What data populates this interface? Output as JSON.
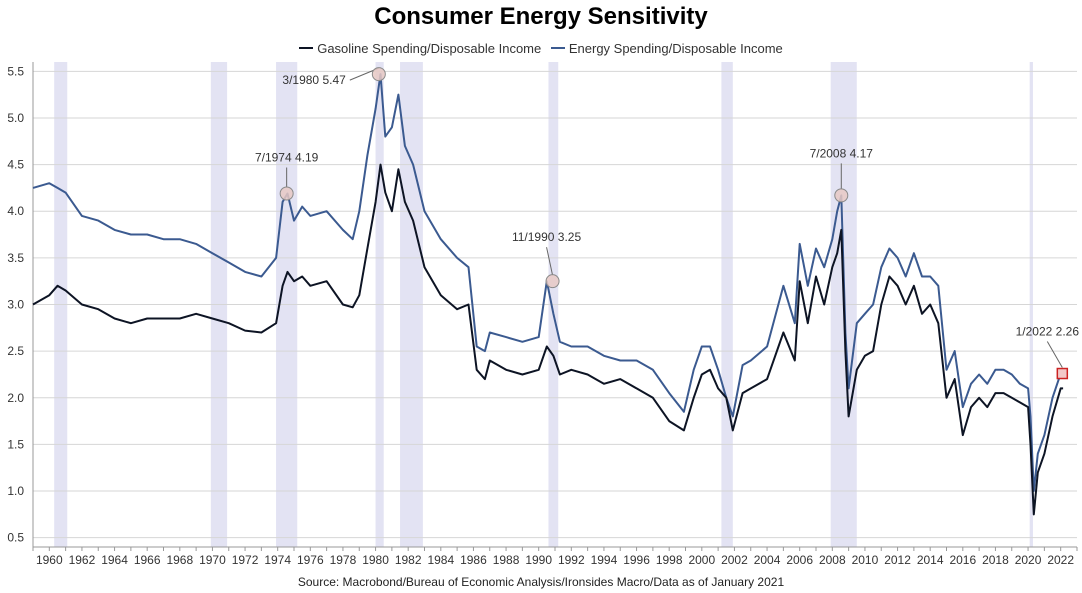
{
  "chart_data": {
    "type": "line",
    "title": "Consumer Energy Sensitivity",
    "source": "Source: Macrobond/Bureau of Economic Analysis/Ironsides Macro/Data as of January 2021",
    "xlim": [
      1959,
      2023
    ],
    "ylim": [
      0.4,
      5.6
    ],
    "yticks": [
      0.5,
      1.0,
      1.5,
      2.0,
      2.5,
      3.0,
      3.5,
      4.0,
      4.5,
      5.0,
      5.5
    ],
    "ytick_labels": [
      "0.5",
      "1.0",
      "1.5",
      "2.0",
      "2.5",
      "3.0",
      "3.5",
      "4.0",
      "4.5",
      "5.0",
      "5.5"
    ],
    "xticks": [
      "1960",
      "1962",
      "1964",
      "1966",
      "1968",
      "1970",
      "1972",
      "1974",
      "1976",
      "1978",
      "1980",
      "1982",
      "1984",
      "1986",
      "1988",
      "1990",
      "1992",
      "1994",
      "1996",
      "1998",
      "2000",
      "2002",
      "2004",
      "2006",
      "2008",
      "2010",
      "2012",
      "2014",
      "2016",
      "2018",
      "2020",
      "2022"
    ],
    "grid": true,
    "legend_position": "top-center",
    "recessions": [
      [
        1960.3,
        1961.1
      ],
      [
        1969.9,
        1970.9
      ],
      [
        1973.9,
        1975.2
      ],
      [
        1980.0,
        1980.5
      ],
      [
        1981.5,
        1982.9
      ],
      [
        1990.6,
        1991.2
      ],
      [
        2001.2,
        2001.9
      ],
      [
        2007.9,
        2009.5
      ],
      [
        2020.1,
        2020.3
      ]
    ],
    "series": [
      {
        "name": "Gasoline Spending/Disposable Income",
        "color": "#0d1424",
        "x": [
          1959.0,
          1960.0,
          1960.5,
          1961.0,
          1962.0,
          1963.0,
          1964.0,
          1965.0,
          1966.0,
          1967.0,
          1968.0,
          1969.0,
          1970.0,
          1971.0,
          1972.0,
          1973.0,
          1973.9,
          1974.3,
          1974.6,
          1975.0,
          1975.5,
          1976.0,
          1977.0,
          1978.0,
          1978.6,
          1979.0,
          1979.5,
          1980.0,
          1980.3,
          1980.6,
          1981.0,
          1981.4,
          1981.8,
          1982.3,
          1983.0,
          1984.0,
          1985.0,
          1985.7,
          1986.2,
          1986.7,
          1987.0,
          1988.0,
          1989.0,
          1990.0,
          1990.5,
          1990.9,
          1991.3,
          1992.0,
          1993.0,
          1994.0,
          1995.0,
          1996.0,
          1997.0,
          1998.0,
          1998.9,
          1999.5,
          2000.0,
          2000.5,
          2001.0,
          2001.5,
          2001.9,
          2002.5,
          2003.0,
          2004.0,
          2005.0,
          2005.7,
          2006.0,
          2006.5,
          2007.0,
          2007.5,
          2008.0,
          2008.3,
          2008.55,
          2008.8,
          2009.0,
          2009.5,
          2010.0,
          2010.5,
          2011.0,
          2011.5,
          2012.0,
          2012.5,
          2013.0,
          2013.5,
          2014.0,
          2014.5,
          2015.0,
          2015.5,
          2016.0,
          2016.5,
          2017.0,
          2017.5,
          2018.0,
          2018.5,
          2019.0,
          2019.5,
          2020.0,
          2020.15,
          2020.35,
          2020.6,
          2021.0,
          2021.5,
          2022.0,
          2022.15
        ],
        "values": [
          3.0,
          3.1,
          3.2,
          3.15,
          3.0,
          2.95,
          2.85,
          2.8,
          2.85,
          2.85,
          2.85,
          2.9,
          2.85,
          2.8,
          2.72,
          2.7,
          2.8,
          3.2,
          3.35,
          3.25,
          3.3,
          3.2,
          3.25,
          3.0,
          2.97,
          3.1,
          3.6,
          4.1,
          4.5,
          4.2,
          4.0,
          4.45,
          4.1,
          3.9,
          3.4,
          3.1,
          2.95,
          3.0,
          2.3,
          2.2,
          2.4,
          2.3,
          2.25,
          2.3,
          2.55,
          2.45,
          2.25,
          2.3,
          2.25,
          2.15,
          2.2,
          2.1,
          2.0,
          1.75,
          1.65,
          2.0,
          2.25,
          2.3,
          2.1,
          2.0,
          1.65,
          2.05,
          2.1,
          2.2,
          2.7,
          2.4,
          3.25,
          2.8,
          3.3,
          3.0,
          3.4,
          3.55,
          3.8,
          2.5,
          1.8,
          2.3,
          2.45,
          2.5,
          3.0,
          3.3,
          3.2,
          3.0,
          3.2,
          2.9,
          3.0,
          2.8,
          2.0,
          2.2,
          1.6,
          1.9,
          2.0,
          1.9,
          2.05,
          2.05,
          2.0,
          1.95,
          1.9,
          1.5,
          0.75,
          1.2,
          1.4,
          1.8,
          2.1,
          2.1
        ]
      },
      {
        "name": "Energy Spending/Disposable Income",
        "color": "#3b5a90",
        "x": [
          1959.0,
          1960.0,
          1960.5,
          1961.0,
          1962.0,
          1963.0,
          1964.0,
          1965.0,
          1966.0,
          1967.0,
          1968.0,
          1969.0,
          1970.0,
          1971.0,
          1972.0,
          1973.0,
          1973.9,
          1974.3,
          1974.6,
          1975.0,
          1975.5,
          1976.0,
          1977.0,
          1978.0,
          1978.6,
          1979.0,
          1979.5,
          1980.0,
          1980.3,
          1980.6,
          1981.0,
          1981.4,
          1981.8,
          1982.3,
          1983.0,
          1984.0,
          1985.0,
          1985.7,
          1986.2,
          1986.7,
          1987.0,
          1988.0,
          1989.0,
          1990.0,
          1990.5,
          1990.9,
          1991.3,
          1992.0,
          1993.0,
          1994.0,
          1995.0,
          1996.0,
          1997.0,
          1998.0,
          1998.9,
          1999.5,
          2000.0,
          2000.5,
          2001.0,
          2001.5,
          2001.9,
          2002.5,
          2003.0,
          2004.0,
          2005.0,
          2005.7,
          2006.0,
          2006.5,
          2007.0,
          2007.5,
          2008.0,
          2008.3,
          2008.55,
          2008.8,
          2009.0,
          2009.5,
          2010.0,
          2010.5,
          2011.0,
          2011.5,
          2012.0,
          2012.5,
          2013.0,
          2013.5,
          2014.0,
          2014.5,
          2015.0,
          2015.5,
          2016.0,
          2016.5,
          2017.0,
          2017.5,
          2018.0,
          2018.5,
          2019.0,
          2019.5,
          2020.0,
          2020.15,
          2020.35,
          2020.6,
          2021.0,
          2021.5,
          2022.0,
          2022.15
        ],
        "values": [
          4.25,
          4.3,
          4.25,
          4.2,
          3.95,
          3.9,
          3.8,
          3.75,
          3.75,
          3.7,
          3.7,
          3.65,
          3.55,
          3.45,
          3.35,
          3.3,
          3.5,
          4.1,
          4.19,
          3.9,
          4.05,
          3.95,
          4.0,
          3.8,
          3.7,
          4.0,
          4.6,
          5.1,
          5.47,
          4.8,
          4.9,
          5.25,
          4.7,
          4.5,
          4.0,
          3.7,
          3.5,
          3.4,
          2.55,
          2.5,
          2.7,
          2.65,
          2.6,
          2.65,
          3.25,
          2.9,
          2.6,
          2.55,
          2.55,
          2.45,
          2.4,
          2.4,
          2.3,
          2.05,
          1.85,
          2.3,
          2.55,
          2.55,
          2.3,
          2.0,
          1.8,
          2.35,
          2.4,
          2.55,
          3.2,
          2.8,
          3.65,
          3.2,
          3.6,
          3.4,
          3.7,
          4.0,
          4.17,
          2.7,
          2.1,
          2.8,
          2.9,
          3.0,
          3.4,
          3.6,
          3.5,
          3.3,
          3.55,
          3.3,
          3.3,
          3.2,
          2.3,
          2.5,
          1.9,
          2.15,
          2.25,
          2.15,
          2.3,
          2.3,
          2.25,
          2.15,
          2.1,
          1.8,
          1.0,
          1.4,
          1.6,
          2.0,
          2.26,
          2.26
        ]
      }
    ],
    "annotations": [
      {
        "label": "7/1974 4.19",
        "x": 1974.55,
        "y": 4.19
      },
      {
        "label": "3/1980 5.47",
        "x": 1980.2,
        "y": 5.47
      },
      {
        "label": "11/1990 3.25",
        "x": 1990.85,
        "y": 3.25
      },
      {
        "label": "7/2008 4.17",
        "x": 2008.55,
        "y": 4.17
      },
      {
        "label": "1/2022 2.26",
        "x": 2022.1,
        "y": 2.26
      }
    ]
  }
}
